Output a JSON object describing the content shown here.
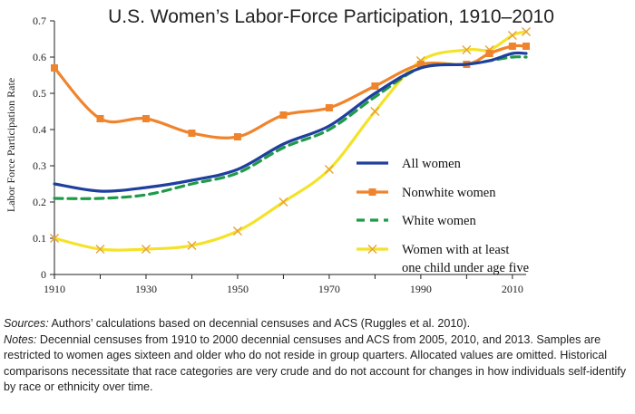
{
  "colors": {
    "all": "#1f3f9e",
    "nonwhite": "#f0842c",
    "white": "#1f9a48",
    "mothers": "#f4e22a"
  },
  "chart_data": {
    "type": "line",
    "title": "U.S. Women’s Labor-Force Participation, 1910–2010",
    "ylabel": "Labor Force Participation Rate",
    "xlabel": "",
    "xlim": [
      1910,
      2013
    ],
    "ylim": [
      0,
      0.7
    ],
    "x_ticks": [
      "1910",
      "1930",
      "1950",
      "1970",
      "1990",
      "2010"
    ],
    "y_ticks": [
      "0",
      "0.1",
      "0.2",
      "0.3",
      "0.4",
      "0.5",
      "0.6",
      "0.7"
    ],
    "legend_position": "right",
    "series": [
      {
        "name": "All women",
        "key": "all",
        "marker": "none",
        "dash": "solid",
        "x": [
          1910,
          1920,
          1930,
          1940,
          1950,
          1960,
          1970,
          1980,
          1990,
          2000,
          2005,
          2010,
          2013
        ],
        "y": [
          0.25,
          0.23,
          0.24,
          0.26,
          0.29,
          0.36,
          0.41,
          0.5,
          0.57,
          0.58,
          0.59,
          0.61,
          0.61
        ]
      },
      {
        "name": "Nonwhite women",
        "key": "nonwhite",
        "marker": "square",
        "dash": "solid",
        "x": [
          1910,
          1920,
          1930,
          1940,
          1950,
          1960,
          1970,
          1980,
          1990,
          2000,
          2005,
          2010,
          2013
        ],
        "y": [
          0.57,
          0.43,
          0.43,
          0.39,
          0.38,
          0.44,
          0.46,
          0.52,
          0.58,
          0.58,
          0.61,
          0.63,
          0.63
        ]
      },
      {
        "name": "White women",
        "key": "white",
        "marker": "none",
        "dash": "dashed",
        "x": [
          1910,
          1920,
          1930,
          1940,
          1950,
          1960,
          1970,
          1980,
          1990,
          2000,
          2005,
          2010,
          2013
        ],
        "y": [
          0.21,
          0.21,
          0.22,
          0.25,
          0.28,
          0.35,
          0.4,
          0.49,
          0.57,
          0.58,
          0.59,
          0.6,
          0.6
        ]
      },
      {
        "name": "Women with at least one child under age five",
        "key": "mothers",
        "marker": "x",
        "dash": "solid",
        "legend_lines": [
          "Women with at least",
          "one child under age five"
        ],
        "x": [
          1910,
          1920,
          1930,
          1940,
          1950,
          1960,
          1970,
          1980,
          1990,
          2000,
          2005,
          2010,
          2013
        ],
        "y": [
          0.1,
          0.07,
          0.07,
          0.08,
          0.12,
          0.2,
          0.29,
          0.45,
          0.59,
          0.62,
          0.62,
          0.66,
          0.67
        ]
      }
    ]
  },
  "notes": {
    "sources_label": "Sources:",
    "sources_text": " Authors’ calculations based on decennial censuses and ACS (Ruggles et al. 2010).",
    "notes_label": "Notes:",
    "notes_text": " Decennial censuses from 1910 to 2000 decennial censuses and ACS from 2005, 2010, and 2013. Samples are restricted to women ages sixteen and older who do not reside in group quarters. Allocated values are omitted. Historical comparisons necessitate that race categories are very crude and do not account for changes in how individuals self-identify by race or ethnicity over time."
  }
}
